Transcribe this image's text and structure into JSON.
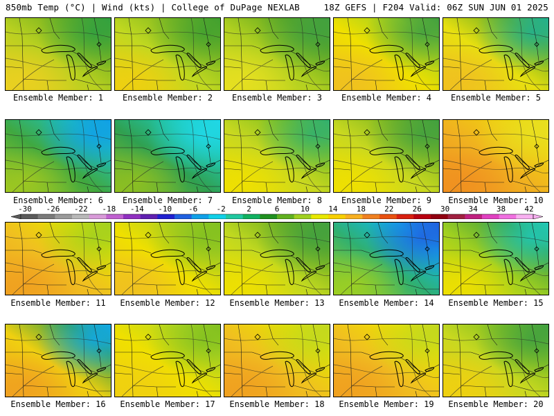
{
  "header": {
    "left": "850mb Temp (°C) | Wind (kts) | College of DuPage NEXLAB",
    "right": "18Z GEFS | F204 Valid: 06Z SUN JUN 01 2025"
  },
  "colorbar": {
    "labels": [
      "-30",
      "-26",
      "-22",
      "-18",
      "-14",
      "-10",
      "-6",
      "-2",
      "2",
      "6",
      "10",
      "14",
      "18",
      "22",
      "26",
      "30",
      "34",
      "38",
      "42"
    ],
    "colors": [
      "#5a5a5a",
      "#7a7a7a",
      "#9a9a9a",
      "#b8b8b8",
      "#d89ad8",
      "#c060d0",
      "#9030c0",
      "#6020b0",
      "#2020d0",
      "#2060e0",
      "#10a0e8",
      "#10d0e8",
      "#20c8a0",
      "#10b060",
      "#209020",
      "#60b020",
      "#a0d020",
      "#e8e800",
      "#f8d000",
      "#f8b020",
      "#f08020",
      "#e85010",
      "#d82010",
      "#b80010",
      "#900010",
      "#a02040",
      "#c02080",
      "#e040c0",
      "#f070e0",
      "#f8b0f0"
    ]
  },
  "members": [
    {
      "label": "Ensemble Member: 1",
      "palette": [
        "#ecd020",
        "#b8d020",
        "#70b020",
        "#30a040"
      ]
    },
    {
      "label": "Ensemble Member: 2",
      "palette": [
        "#f0d010",
        "#c0d820",
        "#80b820",
        "#40a030"
      ]
    },
    {
      "label": "Ensemble Member: 3",
      "palette": [
        "#e8e020",
        "#b0d020",
        "#60a820",
        "#40a040"
      ]
    },
    {
      "label": "Ensemble Member: 4",
      "palette": [
        "#f0c020",
        "#f0e000",
        "#a0d020",
        "#40a040"
      ]
    },
    {
      "label": "Ensemble Member: 5",
      "palette": [
        "#f0c020",
        "#e8e010",
        "#70b020",
        "#20b090"
      ]
    },
    {
      "label": "Ensemble Member: 6",
      "palette": [
        "#a0c820",
        "#40a840",
        "#20c0b0",
        "#10a0e8"
      ]
    },
    {
      "label": "Ensemble Member: 7",
      "palette": [
        "#90c020",
        "#30a050",
        "#20c8b0",
        "#20d8e8"
      ]
    },
    {
      "label": "Ensemble Member: 8",
      "palette": [
        "#f0e000",
        "#c8d820",
        "#80c020",
        "#30b070"
      ]
    },
    {
      "label": "Ensemble Member: 9",
      "palette": [
        "#f0e000",
        "#c8d820",
        "#80b820",
        "#40a040"
      ]
    },
    {
      "label": "Ensemble Member: 10",
      "palette": [
        "#f09020",
        "#f0b020",
        "#f0d010",
        "#e8e020"
      ]
    },
    {
      "label": "Ensemble Member: 11",
      "palette": [
        "#f0a020",
        "#f0c020",
        "#e8e000",
        "#a0d020"
      ]
    },
    {
      "label": "Ensemble Member: 12",
      "palette": [
        "#f0c020",
        "#f0e000",
        "#b0d020",
        "#80c020"
      ]
    },
    {
      "label": "Ensemble Member: 13",
      "palette": [
        "#f0e000",
        "#c0d820",
        "#70b020",
        "#40a040"
      ]
    },
    {
      "label": "Ensemble Member: 14",
      "palette": [
        "#a0d020",
        "#30b070",
        "#10b8e8",
        "#2060e0"
      ]
    },
    {
      "label": "Ensemble Member: 15",
      "palette": [
        "#f0e000",
        "#a0d020",
        "#40a040",
        "#20c8b8"
      ]
    },
    {
      "label": "Ensemble Member: 16",
      "palette": [
        "#f0a020",
        "#f0d010",
        "#40a040",
        "#10a8e8"
      ]
    },
    {
      "label": "Ensemble Member: 17",
      "palette": [
        "#f0d010",
        "#f0e000",
        "#b8d820",
        "#80c020"
      ]
    },
    {
      "label": "Ensemble Member: 18",
      "palette": [
        "#f0a020",
        "#f0c020",
        "#e8e000",
        "#c0d820"
      ]
    },
    {
      "label": "Ensemble Member: 19",
      "palette": [
        "#f0a020",
        "#f0c020",
        "#f0e000",
        "#c0d820"
      ]
    },
    {
      "label": "Ensemble Member: 20",
      "palette": [
        "#f0d010",
        "#c8d820",
        "#80c020",
        "#40a040"
      ]
    }
  ]
}
